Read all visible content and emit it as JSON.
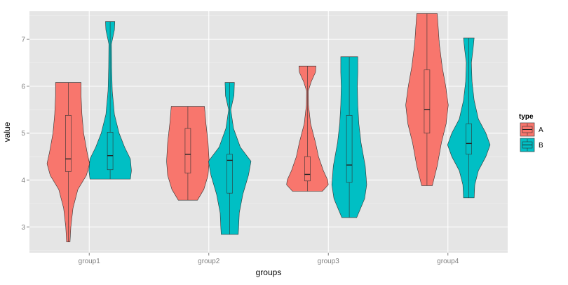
{
  "chart_data": {
    "type": "violin",
    "xlabel": "groups",
    "ylabel": "value",
    "categories": [
      "group1",
      "group2",
      "group3",
      "group4"
    ],
    "ylim": [
      2.45,
      7.6
    ],
    "yticks": [
      3,
      4,
      5,
      6,
      7
    ],
    "grid": true,
    "legend": {
      "title": "type",
      "position": "right",
      "entries": [
        {
          "name": "A",
          "color": "#F8766D"
        },
        {
          "name": "B",
          "color": "#00BFC4"
        }
      ]
    },
    "series": [
      {
        "name": "A",
        "color": "#F8766D",
        "violins": [
          {
            "group": "group1",
            "min": 2.68,
            "max": 6.08,
            "q1": 4.18,
            "median": 4.45,
            "q3": 5.38,
            "density": [
              [
                2.68,
                0.08
              ],
              [
                3.0,
                0.12
              ],
              [
                3.4,
                0.22
              ],
              [
                3.8,
                0.45
              ],
              [
                4.1,
                0.85
              ],
              [
                4.35,
                1.0
              ],
              [
                4.6,
                0.88
              ],
              [
                5.0,
                0.72
              ],
              [
                5.4,
                0.64
              ],
              [
                5.8,
                0.6
              ],
              [
                6.08,
                0.6
              ]
            ]
          },
          {
            "group": "group2",
            "min": 3.57,
            "max": 5.57,
            "q1": 4.15,
            "median": 4.55,
            "q3": 5.1,
            "density": [
              [
                3.57,
                0.45
              ],
              [
                3.8,
                0.75
              ],
              [
                4.1,
                0.95
              ],
              [
                4.4,
                1.0
              ],
              [
                4.8,
                0.95
              ],
              [
                5.2,
                0.85
              ],
              [
                5.57,
                0.78
              ]
            ]
          },
          {
            "group": "group3",
            "min": 3.76,
            "max": 6.43,
            "q1": 3.98,
            "median": 4.12,
            "q3": 4.5,
            "density": [
              [
                3.76,
                0.7
              ],
              [
                3.9,
                0.98
              ],
              [
                4.0,
                0.95
              ],
              [
                4.2,
                0.75
              ],
              [
                4.5,
                0.52
              ],
              [
                4.8,
                0.38
              ],
              [
                5.2,
                0.15
              ],
              [
                5.6,
                0.05
              ],
              [
                5.9,
                0.04
              ],
              [
                6.1,
                0.18
              ],
              [
                6.3,
                0.38
              ],
              [
                6.43,
                0.4
              ]
            ]
          },
          {
            "group": "group4",
            "min": 3.88,
            "max": 7.55,
            "q1": 5.0,
            "median": 5.5,
            "q3": 6.35,
            "density": [
              [
                3.88,
                0.25
              ],
              [
                4.3,
                0.48
              ],
              [
                4.8,
                0.68
              ],
              [
                5.2,
                0.9
              ],
              [
                5.6,
                1.0
              ],
              [
                6.0,
                0.88
              ],
              [
                6.4,
                0.72
              ],
              [
                6.9,
                0.58
              ],
              [
                7.3,
                0.52
              ],
              [
                7.55,
                0.48
              ]
            ]
          }
        ]
      },
      {
        "name": "B",
        "color": "#00BFC4",
        "violins": [
          {
            "group": "group1",
            "min": 4.02,
            "max": 7.38,
            "q1": 4.22,
            "median": 4.52,
            "q3": 5.02,
            "density": [
              [
                4.02,
                0.95
              ],
              [
                4.2,
                1.0
              ],
              [
                4.45,
                0.95
              ],
              [
                4.7,
                0.68
              ],
              [
                5.0,
                0.42
              ],
              [
                5.4,
                0.2
              ],
              [
                5.9,
                0.1
              ],
              [
                6.4,
                0.07
              ],
              [
                6.9,
                0.06
              ],
              [
                7.2,
                0.2
              ],
              [
                7.38,
                0.22
              ]
            ]
          },
          {
            "group": "group2",
            "min": 2.84,
            "max": 6.08,
            "q1": 3.72,
            "median": 4.42,
            "q3": 4.55,
            "density": [
              [
                2.84,
                0.4
              ],
              [
                3.0,
                0.42
              ],
              [
                3.3,
                0.45
              ],
              [
                3.7,
                0.62
              ],
              [
                4.1,
                0.88
              ],
              [
                4.4,
                1.0
              ],
              [
                4.7,
                0.5
              ],
              [
                5.1,
                0.18
              ],
              [
                5.5,
                0.05
              ],
              [
                5.8,
                0.2
              ],
              [
                6.08,
                0.22
              ]
            ]
          },
          {
            "group": "group3",
            "min": 3.2,
            "max": 6.63,
            "q1": 3.95,
            "median": 4.32,
            "q3": 5.38,
            "density": [
              [
                3.2,
                0.35
              ],
              [
                3.6,
                0.72
              ],
              [
                3.9,
                0.82
              ],
              [
                4.3,
                0.75
              ],
              [
                4.8,
                0.55
              ],
              [
                5.2,
                0.45
              ],
              [
                5.6,
                0.4
              ],
              [
                6.0,
                0.38
              ],
              [
                6.3,
                0.4
              ],
              [
                6.63,
                0.4
              ]
            ]
          },
          {
            "group": "group4",
            "min": 3.62,
            "max": 7.03,
            "q1": 4.55,
            "median": 4.78,
            "q3": 5.2,
            "density": [
              [
                3.62,
                0.25
              ],
              [
                3.9,
                0.28
              ],
              [
                4.2,
                0.45
              ],
              [
                4.5,
                0.8
              ],
              [
                4.75,
                1.0
              ],
              [
                5.0,
                0.8
              ],
              [
                5.3,
                0.45
              ],
              [
                5.7,
                0.25
              ],
              [
                6.1,
                0.15
              ],
              [
                6.5,
                0.12
              ],
              [
                6.8,
                0.2
              ],
              [
                7.03,
                0.25
              ]
            ]
          }
        ]
      }
    ]
  }
}
